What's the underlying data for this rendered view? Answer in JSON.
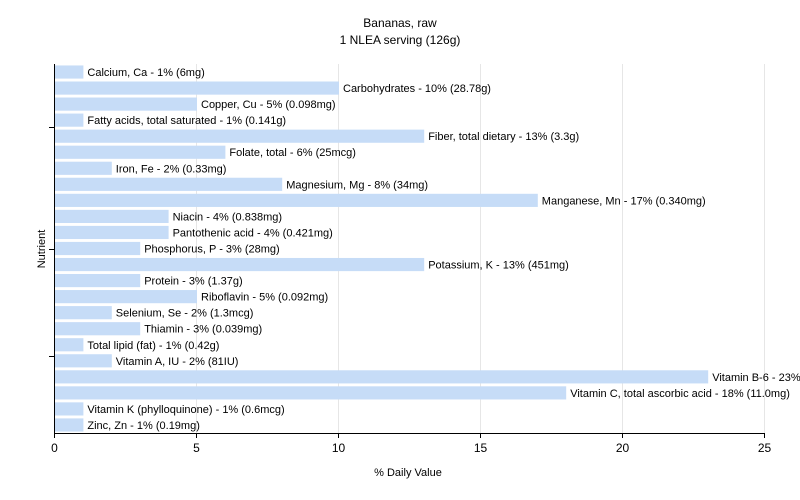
{
  "chart_data": {
    "type": "bar",
    "orientation": "horizontal",
    "title": "Bananas, raw",
    "subtitle": "1 NLEA serving (126g)",
    "xlabel": "% Daily Value",
    "ylabel": "Nutrient",
    "xlim": [
      0,
      25
    ],
    "xticks": [
      0,
      5,
      10,
      15,
      20,
      25
    ],
    "grid": true,
    "bar_color": "#c6dcf7",
    "categories": [
      "Calcium, Ca",
      "Carbohydrates",
      "Copper, Cu",
      "Fatty acids, total saturated",
      "Fiber, total dietary",
      "Folate, total",
      "Iron, Fe",
      "Magnesium, Mg",
      "Manganese, Mn",
      "Niacin",
      "Pantothenic acid",
      "Phosphorus, P",
      "Potassium, K",
      "Protein",
      "Riboflavin",
      "Selenium, Se",
      "Thiamin",
      "Total lipid (fat)",
      "Vitamin A, IU",
      "Vitamin B-6",
      "Vitamin C, total ascorbic acid",
      "Vitamin K (phylloquinone)",
      "Zinc, Zn"
    ],
    "values": [
      1,
      10,
      5,
      1,
      13,
      6,
      2,
      8,
      17,
      4,
      4,
      3,
      13,
      3,
      5,
      2,
      3,
      1,
      2,
      23,
      18,
      1,
      1
    ],
    "labels": [
      "Calcium, Ca - 1% (6mg)",
      "Carbohydrates - 10% (28.78g)",
      "Copper, Cu - 5% (0.098mg)",
      "Fatty acids, total saturated - 1% (0.141g)",
      "Fiber, total dietary - 13% (3.3g)",
      "Folate, total - 6% (25mcg)",
      "Iron, Fe - 2% (0.33mg)",
      "Magnesium, Mg - 8% (34mg)",
      "Manganese, Mn - 17% (0.340mg)",
      "Niacin - 4% (0.838mg)",
      "Pantothenic acid - 4% (0.421mg)",
      "Phosphorus, P - 3% (28mg)",
      "Potassium, K - 13% (451mg)",
      "Protein - 3% (1.37g)",
      "Riboflavin - 5% (0.092mg)",
      "Selenium, Se - 2% (1.3mcg)",
      "Thiamin - 3% (0.039mg)",
      "Total lipid (fat) - 1% (0.42g)",
      "Vitamin A, IU - 2% (81IU)",
      "Vitamin B-6 - 23% (0.462mg)",
      "Vitamin C, total ascorbic acid - 18% (11.0mg)",
      "Vitamin K (phylloquinone) - 1% (0.6mcg)",
      "Zinc, Zn - 1% (0.19mg)"
    ]
  }
}
